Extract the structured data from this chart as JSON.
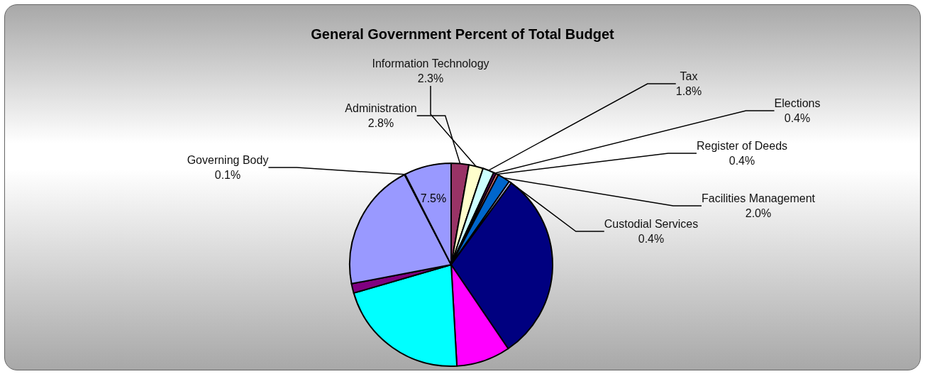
{
  "chart_data": {
    "type": "pie",
    "title": "General Government Percent of Total Budget",
    "categories": [
      "Administration",
      "Information Technology",
      "Tax",
      "Elections",
      "Register of Deeds",
      "Facilities Management",
      "Custodial Services",
      null,
      null,
      null,
      null,
      null,
      "Governing Body",
      null
    ],
    "values": [
      2.8,
      2.3,
      1.8,
      0.4,
      0.4,
      2.0,
      0.4,
      30.4,
      8.6,
      21.4,
      1.5,
      20.4,
      0.1,
      7.5
    ],
    "value_labels": [
      "2.8%",
      "2.3%",
      "1.8%",
      "0.4%",
      "0.4%",
      "2.0%",
      "0.4%",
      null,
      null,
      null,
      null,
      null,
      "0.1%",
      "7.5%"
    ],
    "colors": [
      "#993366",
      "#ffffcc",
      "#ccffff",
      "#660066",
      "#ff8080",
      "#0066cc",
      "#ccccff",
      "#000080",
      "#ff00ff",
      "#00ffff",
      "#800080",
      "#9999ff",
      "#ffffff",
      "#9999ff"
    ],
    "legend": false
  }
}
